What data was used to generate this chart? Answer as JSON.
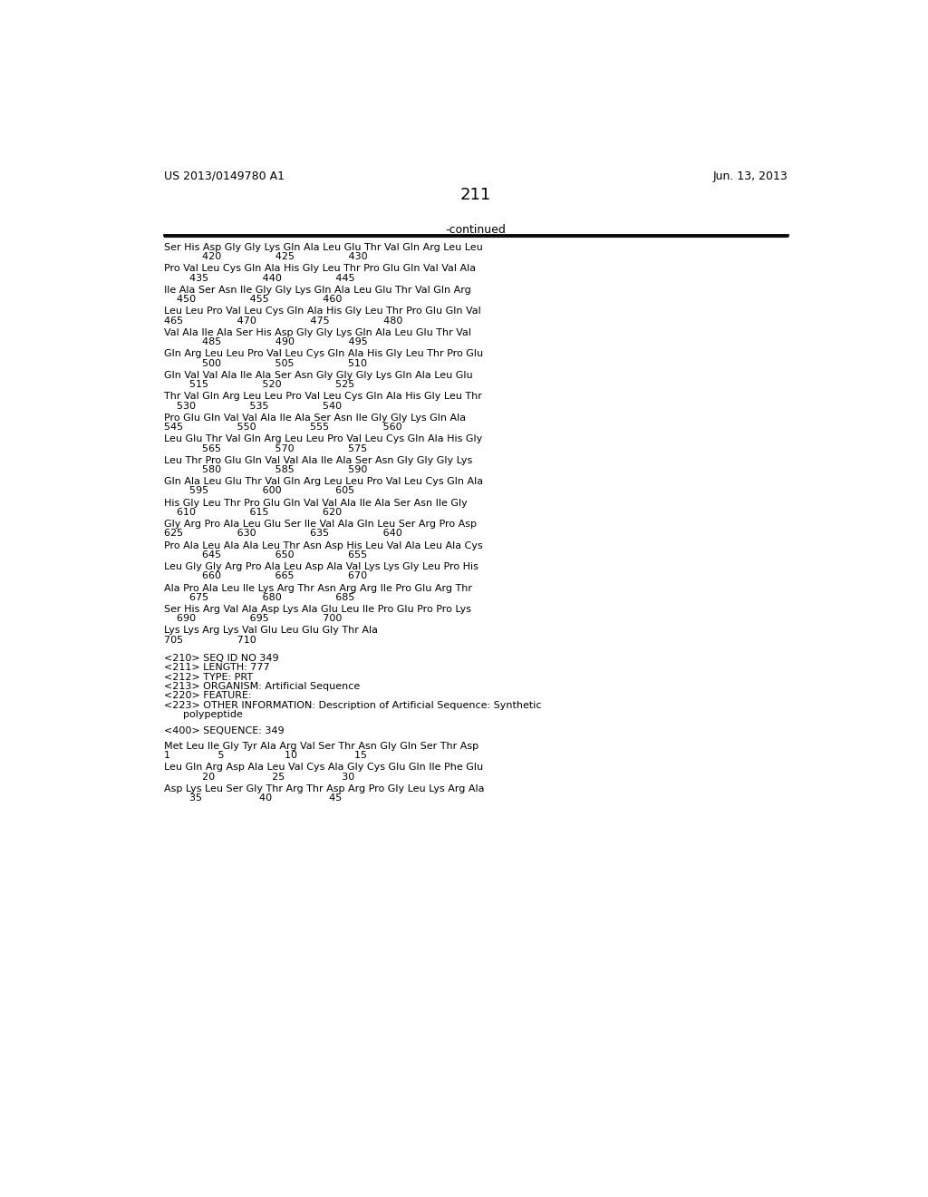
{
  "header_left": "US 2013/0149780 A1",
  "header_right": "Jun. 13, 2013",
  "page_number": "211",
  "continued_label": "-continued",
  "background_color": "#ffffff",
  "text_color": "#000000",
  "lines": [
    {
      "type": "seq",
      "text": "Ser His Asp Gly Gly Lys Gln Ala Leu Glu Thr Val Gln Arg Leu Leu"
    },
    {
      "type": "num",
      "text": "            420                 425                 430"
    },
    {
      "type": "seq",
      "text": "Pro Val Leu Cys Gln Ala His Gly Leu Thr Pro Glu Gln Val Val Ala"
    },
    {
      "type": "num",
      "text": "        435                 440                 445"
    },
    {
      "type": "seq",
      "text": "Ile Ala Ser Asn Ile Gly Gly Lys Gln Ala Leu Glu Thr Val Gln Arg"
    },
    {
      "type": "num",
      "text": "    450                 455                 460"
    },
    {
      "type": "seq",
      "text": "Leu Leu Pro Val Leu Cys Gln Ala His Gly Leu Thr Pro Glu Gln Val"
    },
    {
      "type": "num",
      "text": "465                 470                 475                 480"
    },
    {
      "type": "seq",
      "text": "Val Ala Ile Ala Ser His Asp Gly Gly Lys Gln Ala Leu Glu Thr Val"
    },
    {
      "type": "num",
      "text": "            485                 490                 495"
    },
    {
      "type": "seq",
      "text": "Gln Arg Leu Leu Pro Val Leu Cys Gln Ala His Gly Leu Thr Pro Glu"
    },
    {
      "type": "num",
      "text": "            500                 505                 510"
    },
    {
      "type": "seq",
      "text": "Gln Val Val Ala Ile Ala Ser Asn Gly Gly Gly Lys Gln Ala Leu Glu"
    },
    {
      "type": "num",
      "text": "        515                 520                 525"
    },
    {
      "type": "seq",
      "text": "Thr Val Gln Arg Leu Leu Pro Val Leu Cys Gln Ala His Gly Leu Thr"
    },
    {
      "type": "num",
      "text": "    530                 535                 540"
    },
    {
      "type": "seq",
      "text": "Pro Glu Gln Val Val Ala Ile Ala Ser Asn Ile Gly Gly Lys Gln Ala"
    },
    {
      "type": "num",
      "text": "545                 550                 555                 560"
    },
    {
      "type": "seq",
      "text": "Leu Glu Thr Val Gln Arg Leu Leu Pro Val Leu Cys Gln Ala His Gly"
    },
    {
      "type": "num",
      "text": "            565                 570                 575"
    },
    {
      "type": "seq",
      "text": "Leu Thr Pro Glu Gln Val Val Ala Ile Ala Ser Asn Gly Gly Gly Lys"
    },
    {
      "type": "num",
      "text": "            580                 585                 590"
    },
    {
      "type": "seq",
      "text": "Gln Ala Leu Glu Thr Val Gln Arg Leu Leu Pro Val Leu Cys Gln Ala"
    },
    {
      "type": "num",
      "text": "        595                 600                 605"
    },
    {
      "type": "seq",
      "text": "His Gly Leu Thr Pro Glu Gln Val Val Ala Ile Ala Ser Asn Ile Gly"
    },
    {
      "type": "num",
      "text": "    610                 615                 620"
    },
    {
      "type": "seq",
      "text": "Gly Arg Pro Ala Leu Glu Ser Ile Val Ala Gln Leu Ser Arg Pro Asp"
    },
    {
      "type": "num",
      "text": "625                 630                 635                 640"
    },
    {
      "type": "seq",
      "text": "Pro Ala Leu Ala Ala Leu Thr Asn Asp His Leu Val Ala Leu Ala Cys"
    },
    {
      "type": "num",
      "text": "            645                 650                 655"
    },
    {
      "type": "seq",
      "text": "Leu Gly Gly Arg Pro Ala Leu Asp Ala Val Lys Lys Gly Leu Pro His"
    },
    {
      "type": "num",
      "text": "            660                 665                 670"
    },
    {
      "type": "seq",
      "text": "Ala Pro Ala Leu Ile Lys Arg Thr Asn Arg Arg Ile Pro Glu Arg Thr"
    },
    {
      "type": "num",
      "text": "        675                 680                 685"
    },
    {
      "type": "seq",
      "text": "Ser His Arg Val Ala Asp Lys Ala Glu Leu Ile Pro Glu Pro Pro Lys"
    },
    {
      "type": "num",
      "text": "    690                 695                 700"
    },
    {
      "type": "seq",
      "text": "Lys Lys Arg Lys Val Glu Leu Glu Gly Thr Ala"
    },
    {
      "type": "num",
      "text": "705                 710"
    },
    {
      "type": "blank"
    },
    {
      "type": "meta",
      "text": "<210> SEQ ID NO 349"
    },
    {
      "type": "meta",
      "text": "<211> LENGTH: 777"
    },
    {
      "type": "meta",
      "text": "<212> TYPE: PRT"
    },
    {
      "type": "meta",
      "text": "<213> ORGANISM: Artificial Sequence"
    },
    {
      "type": "meta",
      "text": "<220> FEATURE:"
    },
    {
      "type": "meta",
      "text": "<223> OTHER INFORMATION: Description of Artificial Sequence: Synthetic"
    },
    {
      "type": "meta",
      "text": "      polypeptide"
    },
    {
      "type": "blank"
    },
    {
      "type": "meta",
      "text": "<400> SEQUENCE: 349"
    },
    {
      "type": "blank"
    },
    {
      "type": "seq",
      "text": "Met Leu Ile Gly Tyr Ala Arg Val Ser Thr Asn Gly Gln Ser Thr Asp"
    },
    {
      "type": "num",
      "text": "1               5                   10                  15"
    },
    {
      "type": "seq",
      "text": "Leu Gln Arg Asp Ala Leu Val Cys Ala Gly Cys Glu Gln Ile Phe Glu"
    },
    {
      "type": "num",
      "text": "            20                  25                  30"
    },
    {
      "type": "seq",
      "text": "Asp Lys Leu Ser Gly Thr Arg Thr Asp Arg Pro Gly Leu Lys Arg Ala"
    },
    {
      "type": "num",
      "text": "        35                  40                  45"
    }
  ]
}
